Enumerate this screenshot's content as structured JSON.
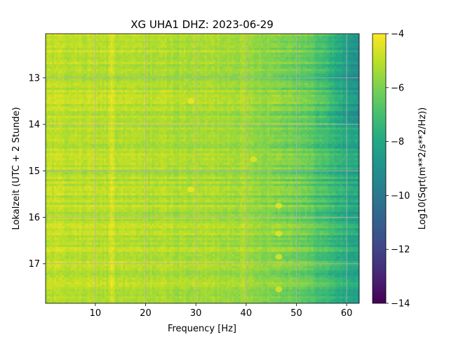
{
  "chart_data": {
    "type": "heatmap",
    "title": "XG UHA1  DHZ: 2023-06-29",
    "xlabel": "Frequency [Hz]",
    "ylabel": "Lokalzeit (UTC + 2 Stunde)",
    "colorbar_label": "Log10(Sqrt(m**2/s**2/Hz))",
    "xlim": [
      0.1,
      62.5
    ],
    "ylim": [
      17.85,
      12.05
    ],
    "y_inverted": true,
    "x_ticks": [
      10,
      20,
      30,
      40,
      50,
      60
    ],
    "x_tick_labels": [
      "10",
      "20",
      "30",
      "40",
      "50",
      "60"
    ],
    "y_ticks": [
      13,
      14,
      15,
      16,
      17
    ],
    "y_tick_labels": [
      "13",
      "14",
      "15",
      "16",
      "17"
    ],
    "colorbar_range": [
      -14,
      -4
    ],
    "colorbar_ticks": [
      -4,
      -6,
      -8,
      -10,
      -12,
      -14
    ],
    "colorbar_tick_labels": [
      "−4",
      "−6",
      "−8",
      "−10",
      "−12",
      "−14"
    ],
    "colormap": "viridis",
    "grid": true,
    "description_values": {
      "low_freq_level": -5.0,
      "mid_freq_level": -5.5,
      "high_freq_level": -7.5,
      "line_frequency_hz": 13,
      "bright_spots": [
        {
          "freq": 29,
          "time": 13.5,
          "value": -4.3
        },
        {
          "freq": 29,
          "time": 15.4,
          "value": -4.3
        },
        {
          "freq": 41.5,
          "time": 14.75,
          "value": -4.5
        },
        {
          "freq": 46.5,
          "time": 15.75,
          "value": -4.5
        },
        {
          "freq": 46.5,
          "time": 16.35,
          "value": -4.5
        },
        {
          "freq": 46.5,
          "time": 16.85,
          "value": -4.6
        },
        {
          "freq": 46.5,
          "time": 17.55,
          "value": -4.6
        }
      ]
    }
  },
  "colors": {
    "gridline": "#b0b0b0",
    "axis": "#000000",
    "background": "#ffffff"
  }
}
